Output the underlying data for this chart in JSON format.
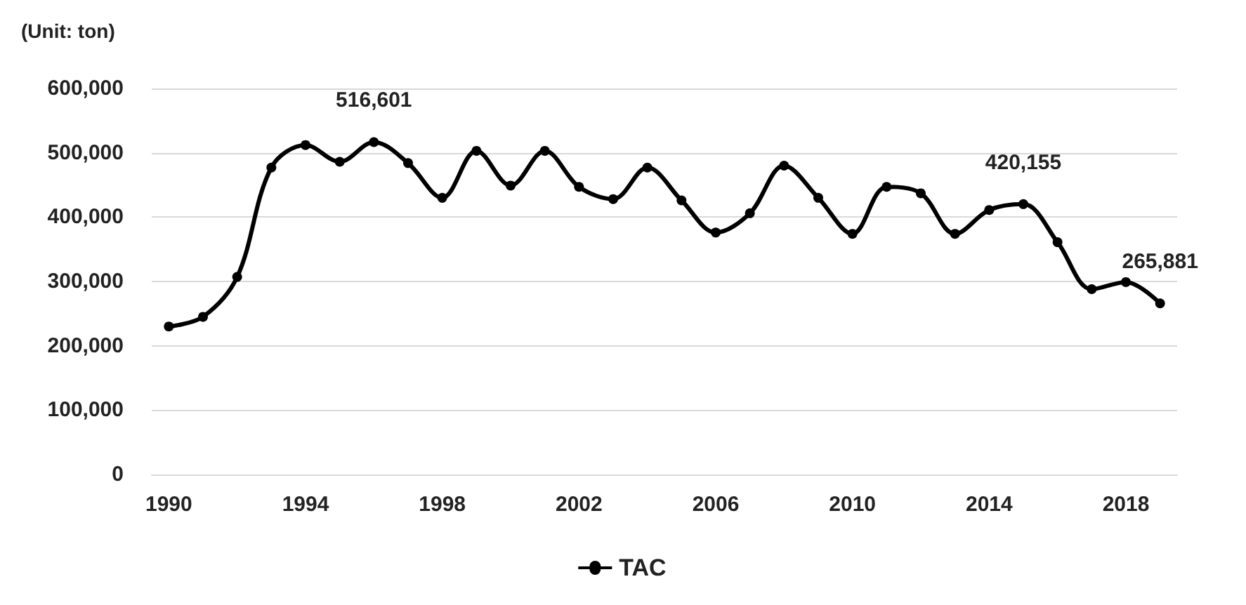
{
  "chart_data": {
    "type": "line",
    "ylabel": "(Unit: ton)",
    "x": [
      1990,
      1991,
      1992,
      1993,
      1994,
      1995,
      1996,
      1997,
      1998,
      1999,
      2000,
      2001,
      2002,
      2003,
      2004,
      2005,
      2006,
      2007,
      2008,
      2009,
      2010,
      2011,
      2012,
      2013,
      2014,
      2015,
      2016,
      2017,
      2018,
      2019
    ],
    "series": [
      {
        "name": "TAC",
        "color": "#000000",
        "values": [
          230000,
          245000,
          307000,
          477000,
          512000,
          486000,
          516601,
          484000,
          430000,
          503000,
          449000,
          503000,
          447000,
          428000,
          477000,
          426000,
          376000,
          406000,
          480000,
          430000,
          374000,
          447000,
          437000,
          374000,
          411000,
          420155,
          361000,
          288000,
          299000,
          265881
        ]
      }
    ],
    "xlim": [
      1989.5,
      2019.5
    ],
    "xticks": [
      1990,
      1994,
      1998,
      2002,
      2006,
      2010,
      2014,
      2018
    ],
    "ylim": [
      0,
      600000
    ],
    "yticks": [
      {
        "value": 0,
        "label": "0"
      },
      {
        "value": 100000,
        "label": "100,000"
      },
      {
        "value": 200000,
        "label": "200,000"
      },
      {
        "value": 300000,
        "label": "300,000"
      },
      {
        "value": 400000,
        "label": "400,000"
      },
      {
        "value": 500000,
        "label": "500,000"
      },
      {
        "value": 600000,
        "label": "600,000"
      }
    ],
    "annotations": [
      {
        "text": "516,601",
        "x": 1996,
        "y": 516601
      },
      {
        "text": "420,155",
        "x": 2015,
        "y": 420155
      },
      {
        "text": "265,881",
        "x": 2019,
        "y": 265881
      }
    ],
    "grid": "y",
    "legend": "bottom",
    "marker": "circle",
    "line_style": "solid"
  }
}
